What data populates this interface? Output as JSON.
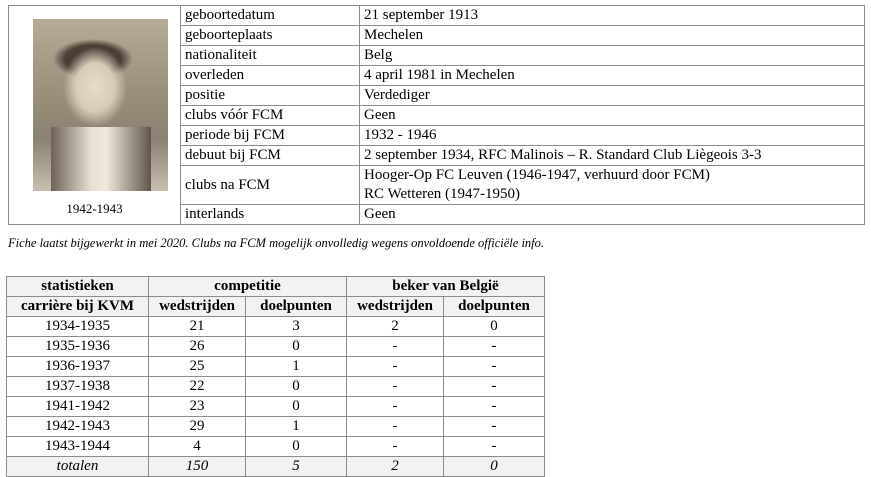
{
  "profile": {
    "photo_caption": "1942-1943",
    "rows": [
      {
        "label": "geboortedatum",
        "value": "21 september 1913"
      },
      {
        "label": "geboorteplaats",
        "value": "Mechelen"
      },
      {
        "label": "nationaliteit",
        "value": "Belg"
      },
      {
        "label": "overleden",
        "value": "4 april 1981 in Mechelen"
      },
      {
        "label": "positie",
        "value": "Verdediger"
      },
      {
        "label": "clubs vóór FCM",
        "value": "Geen"
      },
      {
        "label": "periode bij FCM",
        "value": "1932 - 1946"
      },
      {
        "label": "debuut bij FCM",
        "value": "2 september 1934, RFC Malinois  –  R. Standard Club Liègeois 3-3"
      },
      {
        "label": "clubs na FCM",
        "value": "Hooger-Op FC Leuven  (1946-1947, verhuurd door FCM)",
        "value2": "RC Wetteren  (1947-1950)"
      },
      {
        "label": "interlands",
        "value": "Geen"
      }
    ]
  },
  "note": "Fiche laatst bijgewerkt in mei 2020.  Clubs na FCM mogelijk onvolledig wegens onvoldoende officiële info.",
  "stats": {
    "header1": [
      "statistieken",
      "competitie",
      "beker van België"
    ],
    "header2": [
      "carrière bij KVM",
      "wedstrijden",
      "doelpunten",
      "wedstrijden",
      "doelpunten"
    ],
    "rows": [
      [
        "1934-1935",
        "21",
        "3",
        "2",
        "0"
      ],
      [
        "1935-1936",
        "26",
        "0",
        "-",
        "-"
      ],
      [
        "1936-1937",
        "25",
        "1",
        "-",
        "-"
      ],
      [
        "1937-1938",
        "22",
        "0",
        "-",
        "-"
      ],
      [
        "1941-1942",
        "23",
        "0",
        "-",
        "-"
      ],
      [
        "1942-1943",
        "29",
        "1",
        "-",
        "-"
      ],
      [
        "1943-1944",
        "4",
        "0",
        "-",
        "-"
      ]
    ],
    "totals": [
      "totalen",
      "150",
      "5",
      "2",
      "0"
    ]
  }
}
